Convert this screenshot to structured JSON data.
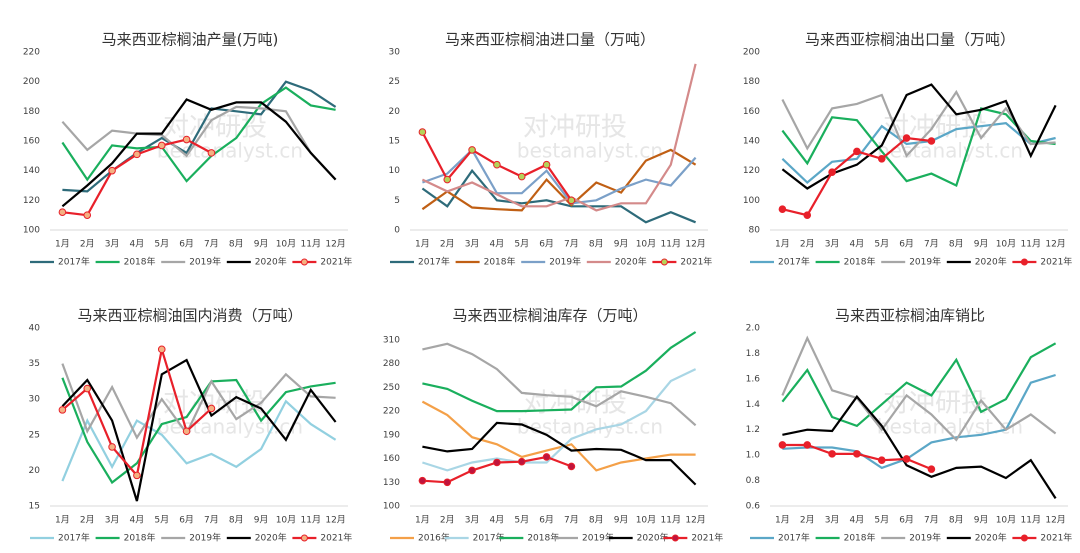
{
  "watermark": [
    "对冲研投",
    "bestanalyst.cn"
  ],
  "chart_data": [
    {
      "type": "line",
      "title": "马来西亚棕榈油产量(万吨)",
      "categories": [
        "1月",
        "2月",
        "3月",
        "4月",
        "5月",
        "6月",
        "7月",
        "8月",
        "9月",
        "10月",
        "11月",
        "12月"
      ],
      "ylim": [
        100,
        220
      ],
      "yticks": [
        100,
        120,
        140,
        160,
        180,
        200,
        220
      ],
      "series": [
        {
          "name": "2017年",
          "color": "#2e6b7a",
          "values": [
            127,
            126,
            140,
            152,
            162,
            152,
            182,
            180,
            178,
            200,
            194,
            183
          ]
        },
        {
          "name": "2018年",
          "color": "#1aaf5d",
          "values": [
            159,
            134,
            157,
            155,
            156,
            133,
            150,
            162,
            185,
            196,
            184,
            181
          ]
        },
        {
          "name": "2019年",
          "color": "#a6a6a6",
          "values": [
            173,
            154,
            167,
            165,
            164,
            150,
            174,
            183,
            182,
            180,
            152,
            134
          ]
        },
        {
          "name": "2020年",
          "color": "#000000",
          "values": [
            116,
            130,
            145,
            165,
            165,
            188,
            181,
            186,
            186,
            173,
            152,
            134
          ]
        },
        {
          "name": "2021年",
          "color": "#e8202a",
          "marker_color": "#f4b183",
          "values": [
            112,
            110,
            140,
            151,
            157,
            161,
            152,
            null,
            null,
            null,
            null,
            null
          ]
        }
      ]
    },
    {
      "type": "line",
      "title": "马来西亚棕榈油进口量（万吨）",
      "categories": [
        "1月",
        "2月",
        "3月",
        "4月",
        "5月",
        "6月",
        "7月",
        "8月",
        "9月",
        "10月",
        "11月",
        "12月"
      ],
      "ylim": [
        0,
        30
      ],
      "yticks": [
        0,
        5,
        10,
        15,
        20,
        25,
        30
      ],
      "series": [
        {
          "name": "2017年",
          "color": "#2e6b7a",
          "values": [
            7,
            4,
            10,
            5,
            4.5,
            5,
            4,
            4,
            4,
            1.3,
            3,
            1.3
          ]
        },
        {
          "name": "2018年",
          "color": "#c05f14",
          "values": [
            3.5,
            6.5,
            3.8,
            3.5,
            3.3,
            8.5,
            4.2,
            8,
            6.3,
            11.7,
            13.5,
            11
          ]
        },
        {
          "name": "2019年",
          "color": "#7ba0c8",
          "values": [
            8,
            9.5,
            13.5,
            6.2,
            6.2,
            10,
            4.5,
            5,
            7,
            8.5,
            7.5,
            12.2
          ]
        },
        {
          "name": "2020年",
          "color": "#d48a8a",
          "values": [
            8.5,
            6.5,
            8,
            6,
            4,
            4,
            5.5,
            3.3,
            4.5,
            4.5,
            11,
            28
          ]
        },
        {
          "name": "2021年",
          "color": "#e8202a",
          "marker_color": "#b5d35a",
          "values": [
            16.5,
            8.5,
            13.5,
            11,
            9,
            11,
            5,
            null,
            null,
            null,
            null,
            null
          ]
        }
      ]
    },
    {
      "type": "line",
      "title": "马来西亚棕榈油出口量（万吨）",
      "categories": [
        "1月",
        "2月",
        "3月",
        "4月",
        "5月",
        "6月",
        "7月",
        "8月",
        "9月",
        "10月",
        "11月",
        "12月"
      ],
      "ylim": [
        80,
        200
      ],
      "yticks": [
        80,
        100,
        120,
        140,
        160,
        180,
        200
      ],
      "series": [
        {
          "name": "2017年",
          "color": "#5ba7c7",
          "values": [
            128,
            112,
            126,
            128,
            150,
            138,
            140,
            148,
            150,
            152,
            138,
            142
          ]
        },
        {
          "name": "2018年",
          "color": "#1aaf5d",
          "values": [
            147,
            125,
            156,
            154,
            133,
            113,
            118,
            110,
            162,
            158,
            140,
            138
          ]
        },
        {
          "name": "2019年",
          "color": "#a6a6a6",
          "values": [
            168,
            135,
            162,
            165,
            171,
            130,
            148,
            173,
            142,
            162,
            138,
            139
          ]
        },
        {
          "name": "2020年",
          "color": "#000000",
          "values": [
            121,
            108,
            118,
            124,
            137,
            171,
            178,
            158,
            161,
            167,
            130,
            164
          ]
        },
        {
          "name": "2021年",
          "color": "#e8202a",
          "marker_color": "#e8202a",
          "values": [
            94,
            90,
            119,
            133,
            128,
            142,
            140,
            null,
            null,
            null,
            null,
            null
          ]
        }
      ]
    },
    {
      "type": "line",
      "title": "马来西亚棕榈油国内消费（万吨）",
      "categories": [
        "1月",
        "2月",
        "3月",
        "4月",
        "5月",
        "6月",
        "7月",
        "8月",
        "9月",
        "10月",
        "11月",
        "12月"
      ],
      "ylim": [
        15,
        40
      ],
      "yticks": [
        15,
        20,
        25,
        30,
        35,
        40
      ],
      "series": [
        {
          "name": "2017年",
          "color": "#92d0e0",
          "values": [
            18.5,
            27,
            20.5,
            27,
            25,
            21,
            22.3,
            20.5,
            23,
            29.7,
            26.5,
            24.3
          ]
        },
        {
          "name": "2018年",
          "color": "#1aaf5d",
          "values": [
            33,
            24,
            18.3,
            21,
            26.5,
            27.5,
            32.5,
            32.7,
            27,
            31,
            31.8,
            32.3
          ]
        },
        {
          "name": "2019年",
          "color": "#a6a6a6",
          "values": [
            35,
            25.5,
            31.7,
            24.6,
            30,
            25.2,
            32.5,
            27.2,
            29.5,
            33.5,
            30.4,
            30.2
          ]
        },
        {
          "name": "2020年",
          "color": "#000000",
          "values": [
            29,
            32.7,
            27,
            15.7,
            33.5,
            35.5,
            27.7,
            30.3,
            28.7,
            24.3,
            31.3,
            26.8
          ]
        },
        {
          "name": "2021年",
          "color": "#e8202a",
          "marker_color": "#f4b183",
          "values": [
            28.5,
            31.5,
            23.3,
            19.3,
            37,
            25.5,
            28.7,
            null,
            null,
            null,
            null,
            null
          ]
        }
      ]
    },
    {
      "type": "line",
      "title": "马来西亚棕榈油库存（万吨）",
      "categories": [
        "1月",
        "2月",
        "3月",
        "4月",
        "5月",
        "6月",
        "7月",
        "8月",
        "9月",
        "10月",
        "11月",
        "12月"
      ],
      "ylim": [
        100,
        325
      ],
      "yticks": [
        100,
        130,
        160,
        190,
        220,
        250,
        280,
        310
      ],
      "series": [
        {
          "name": "2016年",
          "color": "#f4a048",
          "values": [
            232,
            215,
            187,
            178,
            162,
            170,
            178,
            145,
            155,
            160,
            165,
            165
          ]
        },
        {
          "name": "2017年",
          "color": "#a9d6e5",
          "values": [
            155,
            145,
            155,
            160,
            155,
            155,
            185,
            197,
            203,
            220,
            258,
            273
          ]
        },
        {
          "name": "2018年",
          "color": "#1aaf5d",
          "values": [
            255,
            248,
            233,
            220,
            220,
            221,
            222,
            250,
            251,
            271,
            300,
            320
          ]
        },
        {
          "name": "2019年",
          "color": "#a6a6a6",
          "values": [
            298,
            305,
            292,
            273,
            243,
            240,
            238,
            226,
            245,
            238,
            230,
            202
          ]
        },
        {
          "name": "2020年",
          "color": "#000000",
          "values": [
            175,
            169,
            172,
            205,
            203,
            190,
            170,
            172,
            171,
            158,
            158,
            127
          ]
        },
        {
          "name": "2021年",
          "color": "#e8202a",
          "marker_color": "#c0143c",
          "values": [
            132,
            130,
            145,
            155,
            156,
            162,
            150,
            null,
            null,
            null,
            null,
            null
          ]
        }
      ]
    },
    {
      "type": "line",
      "title": "马来西亚棕榈油库销比",
      "categories": [
        "1月",
        "2月",
        "3月",
        "4月",
        "5月",
        "6月",
        "7月",
        "8月",
        "9月",
        "10月",
        "11月",
        "12月"
      ],
      "ylim": [
        0.6,
        2.0
      ],
      "yticks": [
        0.6,
        0.8,
        {
          "value": 1.0,
          "label": "1.0"
        },
        1.2,
        1.4,
        1.6,
        1.8,
        {
          "value": 2.0,
          "label": "2.0"
        }
      ],
      "series": [
        {
          "name": "2017年",
          "color": "#5ba7c7",
          "values": [
            1.05,
            1.06,
            1.06,
            1.03,
            0.9,
            0.97,
            1.1,
            1.14,
            1.16,
            1.2,
            1.57,
            1.63
          ]
        },
        {
          "name": "2018年",
          "color": "#1aaf5d",
          "values": [
            1.42,
            1.67,
            1.3,
            1.23,
            1.4,
            1.57,
            1.47,
            1.75,
            1.34,
            1.44,
            1.77,
            1.88
          ]
        },
        {
          "name": "2019年",
          "color": "#a6a6a6",
          "values": [
            1.47,
            1.92,
            1.51,
            1.45,
            1.2,
            1.47,
            1.32,
            1.12,
            1.43,
            1.2,
            1.32,
            1.17
          ]
        },
        {
          "name": "2020年",
          "color": "#000000",
          "values": [
            1.16,
            1.2,
            1.19,
            1.46,
            1.23,
            0.92,
            0.83,
            0.9,
            0.91,
            0.82,
            0.96,
            0.66
          ]
        },
        {
          "name": "2021年",
          "color": "#e8202a",
          "marker_color": "#e8202a",
          "values": [
            1.08,
            1.08,
            1.01,
            1.01,
            0.96,
            0.97,
            0.89,
            null,
            null,
            null,
            null,
            null
          ]
        }
      ]
    }
  ]
}
